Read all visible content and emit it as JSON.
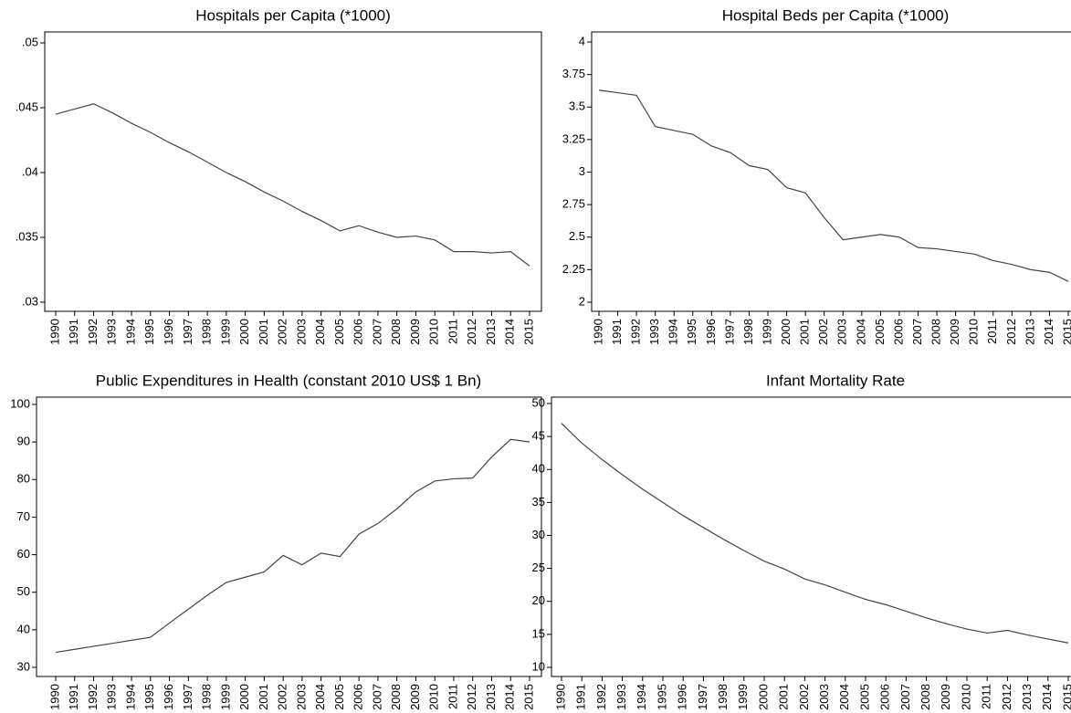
{
  "chart_data": [
    {
      "type": "line",
      "title": "Hospitals per Capita (*1000)",
      "x": [
        1990,
        1991,
        1992,
        1993,
        1994,
        1995,
        1996,
        1997,
        1998,
        1999,
        2000,
        2001,
        2002,
        2003,
        2004,
        2005,
        2006,
        2007,
        2008,
        2009,
        2010,
        2011,
        2012,
        2013,
        2014,
        2015
      ],
      "xlim": [
        1990,
        2015
      ],
      "xticks": [
        1990,
        1991,
        1992,
        1993,
        1994,
        1995,
        1996,
        1997,
        1998,
        1999,
        2000,
        2001,
        2002,
        2003,
        2004,
        2005,
        2006,
        2007,
        2008,
        2009,
        2010,
        2011,
        2012,
        2013,
        2014,
        2015
      ],
      "ylim": [
        0.03,
        0.05
      ],
      "yticks": [
        {
          "value": 0.03,
          "label": ".03"
        },
        {
          "value": 0.035,
          "label": ".035"
        },
        {
          "value": 0.04,
          "label": ".04"
        },
        {
          "value": 0.045,
          "label": ".045"
        },
        {
          "value": 0.05,
          "label": ".05"
        }
      ],
      "color": "#444444",
      "values": [
        0.0445,
        0.0449,
        0.0453,
        0.0446,
        0.0438,
        0.0431,
        0.0423,
        0.0416,
        0.0408,
        0.04,
        0.0393,
        0.0385,
        0.0378,
        0.037,
        0.0363,
        0.0355,
        0.0359,
        0.0354,
        0.035,
        0.0351,
        0.0348,
        0.0339,
        0.0339,
        0.0338,
        0.0339,
        0.0328
      ]
    },
    {
      "type": "line",
      "title": "Hospital Beds per Capita (*1000)",
      "x": [
        1990,
        1991,
        1992,
        1993,
        1994,
        1995,
        1996,
        1997,
        1998,
        1999,
        2000,
        2001,
        2002,
        2003,
        2004,
        2005,
        2006,
        2007,
        2008,
        2009,
        2010,
        2011,
        2012,
        2013,
        2014,
        2015
      ],
      "xlim": [
        1990,
        2015
      ],
      "xticks": [
        1990,
        1991,
        1992,
        1993,
        1994,
        1995,
        1996,
        1997,
        1998,
        1999,
        2000,
        2001,
        2002,
        2003,
        2004,
        2005,
        2006,
        2007,
        2008,
        2009,
        2010,
        2011,
        2012,
        2013,
        2014,
        2015
      ],
      "ylim": [
        2,
        4
      ],
      "yticks": [
        2,
        2.25,
        2.5,
        2.75,
        3,
        3.25,
        3.5,
        3.75,
        4
      ],
      "color": "#444444",
      "values": [
        3.63,
        3.61,
        3.59,
        3.35,
        3.32,
        3.29,
        3.2,
        3.15,
        3.05,
        3.02,
        2.88,
        2.84,
        2.65,
        2.48,
        2.5,
        2.52,
        2.5,
        2.42,
        2.41,
        2.39,
        2.37,
        2.32,
        2.29,
        2.25,
        2.23,
        2.16
      ]
    },
    {
      "type": "line",
      "title": "Public Expenditures in Health (constant 2010 US$ 1 Bn)",
      "x": [
        1990,
        1991,
        1992,
        1993,
        1994,
        1995,
        1996,
        1997,
        1998,
        1999,
        2000,
        2001,
        2002,
        2003,
        2004,
        2005,
        2006,
        2007,
        2008,
        2009,
        2010,
        2011,
        2012,
        2013,
        2014,
        2015
      ],
      "xlim": [
        1990,
        2015
      ],
      "xticks": [
        1990,
        1991,
        1992,
        1993,
        1994,
        1995,
        1996,
        1997,
        1998,
        1999,
        2000,
        2001,
        2002,
        2003,
        2004,
        2005,
        2006,
        2007,
        2008,
        2009,
        2010,
        2011,
        2012,
        2013,
        2014,
        2015
      ],
      "ylim": [
        30,
        100
      ],
      "yticks": [
        30,
        40,
        50,
        60,
        70,
        80,
        90,
        100
      ],
      "color": "#444444",
      "values": [
        34,
        34.8,
        35.6,
        36.4,
        37.2,
        38,
        41.8,
        45.5,
        49.2,
        52.6,
        54,
        55.4,
        59.8,
        57.3,
        60.4,
        59.5,
        65.5,
        68.3,
        72.2,
        76.7,
        79.6,
        80.2,
        80.4,
        86,
        90.7,
        90
      ]
    },
    {
      "type": "line",
      "title": "Infant Mortality Rate",
      "x": [
        1990,
        1991,
        1992,
        1993,
        1994,
        1995,
        1996,
        1997,
        1998,
        1999,
        2000,
        2001,
        2002,
        2003,
        2004,
        2005,
        2006,
        2007,
        2008,
        2009,
        2010,
        2011,
        2012,
        2013,
        2014,
        2015
      ],
      "xlim": [
        1990,
        2015
      ],
      "xticks": [
        1990,
        1991,
        1992,
        1993,
        1994,
        1995,
        1996,
        1997,
        1998,
        1999,
        2000,
        2001,
        2002,
        2003,
        2004,
        2005,
        2006,
        2007,
        2008,
        2009,
        2010,
        2011,
        2012,
        2013,
        2014,
        2015
      ],
      "ylim": [
        10,
        50
      ],
      "yticks": [
        10,
        15,
        20,
        25,
        30,
        35,
        40,
        45,
        50
      ],
      "color": "#444444",
      "values": [
        47,
        44,
        41.5,
        39.2,
        37,
        35,
        33,
        31.2,
        29.4,
        27.7,
        26.1,
        24.9,
        23.4,
        22.5,
        21.4,
        20.3,
        19.5,
        18.5,
        17.5,
        16.6,
        15.8,
        15.2,
        15.6,
        14.9,
        14.3,
        13.7
      ]
    }
  ]
}
